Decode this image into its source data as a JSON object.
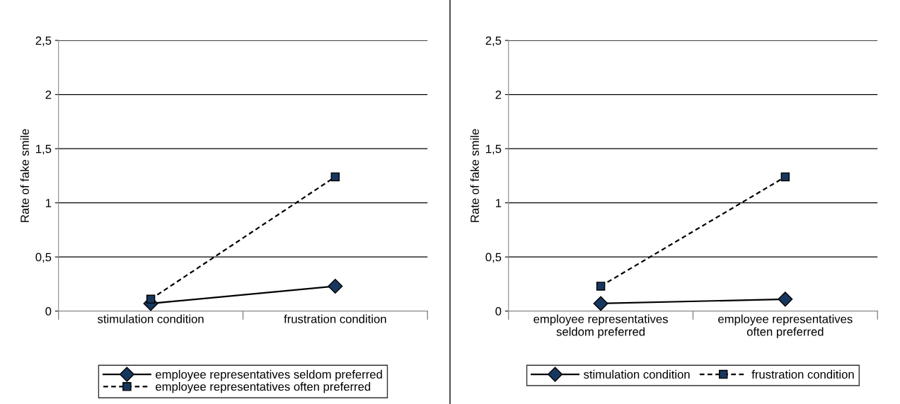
{
  "chart_data": [
    {
      "type": "line",
      "ylabel": "Rate of fake smile",
      "categories": [
        "stimulation condition",
        "frustration condition"
      ],
      "ylim": [
        0,
        2.5
      ],
      "yticks": [
        0,
        {
          "value": 0.5,
          "label": "0,5"
        },
        1,
        {
          "value": 1.5,
          "label": "1,5"
        },
        2,
        {
          "value": 2.5,
          "label": "2,5"
        }
      ],
      "grid": "y",
      "legend": "bottom",
      "series": [
        {
          "name": "employee representatives seldom preferred",
          "color": "#17375e",
          "values": [
            0.07,
            0.23
          ],
          "marker": "diamond",
          "line_style": "solid"
        },
        {
          "name": "employee representatives often preferred",
          "color": "#17375e",
          "values": [
            0.11,
            1.24
          ],
          "marker": "square",
          "line_style": "dashed"
        }
      ]
    },
    {
      "type": "line",
      "ylabel": "Rate of fake smile",
      "categories": [
        "employee representatives\nseldom preferred",
        "employee representatives\noften preferred"
      ],
      "ylim": [
        0,
        2.5
      ],
      "yticks": [
        0,
        {
          "value": 0.5,
          "label": "0,5"
        },
        1,
        {
          "value": 1.5,
          "label": "1,5"
        },
        2,
        {
          "value": 2.5,
          "label": "2,5"
        }
      ],
      "grid": "y",
      "legend": "bottom",
      "series": [
        {
          "name": "stimulation condition",
          "color": "#17375e",
          "values": [
            0.07,
            0.11
          ],
          "marker": "diamond",
          "line_style": "solid"
        },
        {
          "name": "frustration condition",
          "color": "#17375e",
          "values": [
            0.23,
            1.24
          ],
          "marker": "square",
          "line_style": "dashed"
        }
      ]
    }
  ]
}
